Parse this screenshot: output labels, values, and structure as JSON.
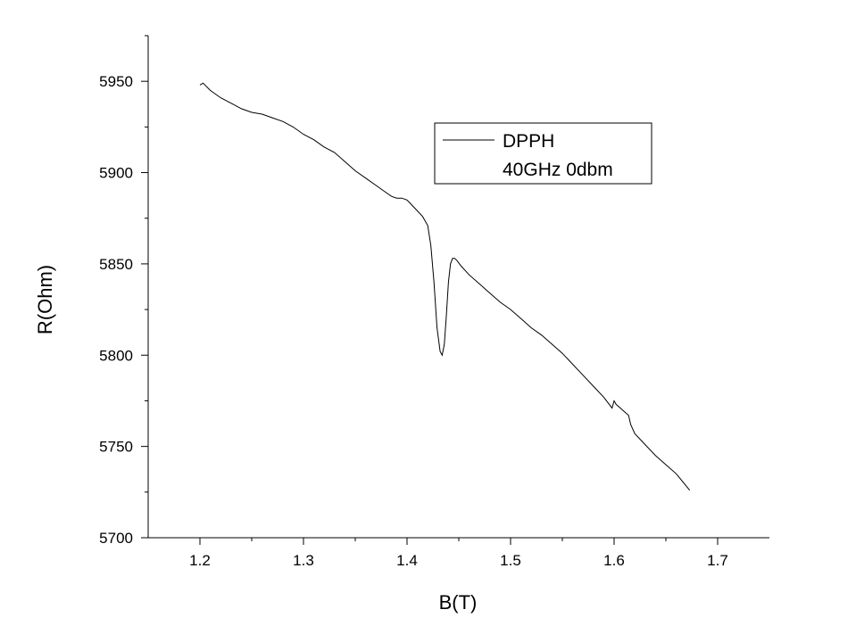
{
  "chart_data": {
    "type": "line",
    "xlabel": "B(T)",
    "ylabel": "R(Ohm)",
    "xlim": [
      1.15,
      1.75
    ],
    "ylim": [
      5700,
      5975
    ],
    "x_ticks": [
      1.2,
      1.3,
      1.4,
      1.5,
      1.6,
      1.7
    ],
    "x_tick_labels": [
      "1.2",
      "1.3",
      "1.4",
      "1.5",
      "1.6",
      "1.7"
    ],
    "y_ticks": [
      5700,
      5750,
      5800,
      5850,
      5900,
      5950
    ],
    "y_tick_labels": [
      "5700",
      "5750",
      "5800",
      "5850",
      "5900",
      "5950"
    ],
    "grid": false,
    "legend": {
      "position": "top-right",
      "entries": [
        "DPPH",
        "40GHz 0dbm"
      ]
    },
    "series": [
      {
        "name": "DPPH",
        "color": "#000000",
        "x": [
          1.2,
          1.203,
          1.21,
          1.22,
          1.23,
          1.24,
          1.25,
          1.26,
          1.27,
          1.28,
          1.29,
          1.3,
          1.31,
          1.32,
          1.33,
          1.34,
          1.35,
          1.36,
          1.37,
          1.38,
          1.385,
          1.39,
          1.395,
          1.4,
          1.405,
          1.41,
          1.415,
          1.42,
          1.423,
          1.426,
          1.429,
          1.432,
          1.434,
          1.436,
          1.438,
          1.44,
          1.442,
          1.444,
          1.446,
          1.448,
          1.452,
          1.46,
          1.47,
          1.48,
          1.49,
          1.5,
          1.51,
          1.52,
          1.53,
          1.54,
          1.55,
          1.56,
          1.57,
          1.58,
          1.59,
          1.598,
          1.6,
          1.602,
          1.606,
          1.61,
          1.614,
          1.616,
          1.62,
          1.63,
          1.64,
          1.65,
          1.66,
          1.673
        ],
        "y": [
          5948,
          5949,
          5945,
          5941,
          5938,
          5935,
          5933,
          5932,
          5930,
          5928,
          5925,
          5921,
          5918,
          5914,
          5911,
          5906,
          5901,
          5897,
          5893,
          5889,
          5887,
          5886,
          5886,
          5885,
          5882,
          5879,
          5876,
          5871,
          5860,
          5840,
          5815,
          5802,
          5800,
          5806,
          5822,
          5840,
          5850,
          5853,
          5853,
          5852,
          5849,
          5844,
          5839,
          5834,
          5829,
          5825,
          5820,
          5815,
          5811,
          5806,
          5801,
          5795,
          5789,
          5783,
          5777,
          5771,
          5775,
          5773,
          5771,
          5769,
          5767,
          5762,
          5757,
          5751,
          5745,
          5740,
          5735,
          5726
        ]
      }
    ]
  }
}
